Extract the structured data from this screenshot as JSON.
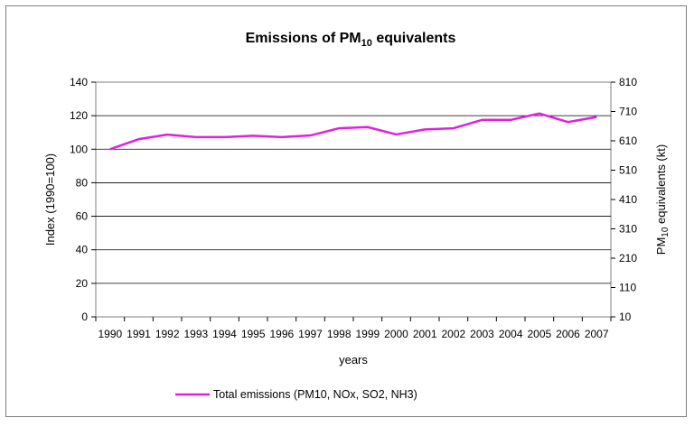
{
  "chart_data": {
    "type": "line",
    "title": "Emissions of PM",
    "title_subscript": "10",
    "title_suffix": " equivalents",
    "xlabel": "years",
    "ylabel_left": "Index (1990=100)",
    "ylabel_right_prefix": "PM",
    "ylabel_right_subscript": "10",
    "ylabel_right_suffix": " equivalents (kt)",
    "categories": [
      "1990",
      "1991",
      "1992",
      "1993",
      "1994",
      "1995",
      "1996",
      "1997",
      "1998",
      "1999",
      "2000",
      "2001",
      "2002",
      "2003",
      "2004",
      "2005",
      "2006",
      "2007"
    ],
    "series": [
      {
        "name": "Total emissions (PM10, NOx, SO2, NH3)",
        "color": "#e020e0",
        "values": [
          100,
          106,
          108.7,
          107.2,
          107.2,
          108,
          107.2,
          108.2,
          112.5,
          113.2,
          108.8,
          111.8,
          112.5,
          117.5,
          117.5,
          121.3,
          116.2,
          119.2
        ]
      }
    ],
    "ylim_left": [
      0,
      140
    ],
    "yticks_left": [
      "0",
      "20",
      "40",
      "60",
      "80",
      "100",
      "120",
      "140"
    ],
    "ylim_right": [
      10,
      810
    ],
    "yticks_right": [
      "10",
      "110",
      "210",
      "310",
      "410",
      "510",
      "610",
      "710",
      "810"
    ],
    "grid": "horizontal",
    "legend_position": "bottom"
  }
}
